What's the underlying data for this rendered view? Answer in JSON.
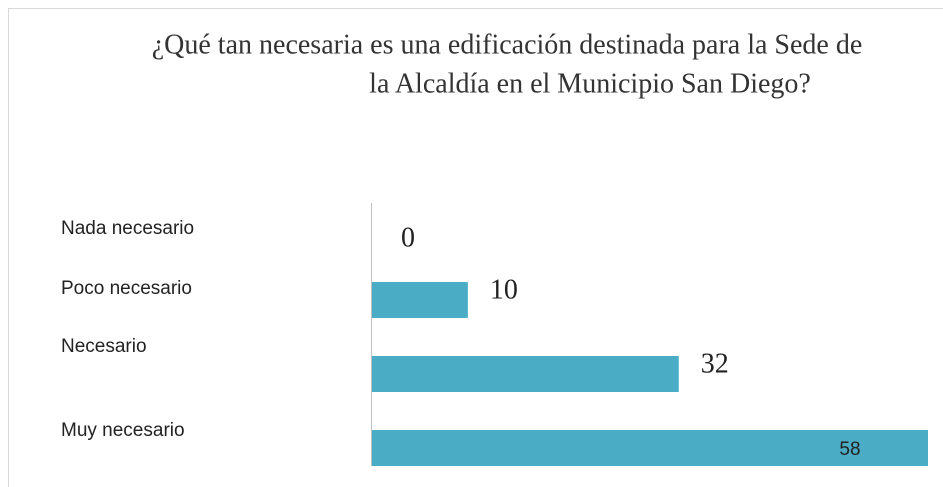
{
  "chart_data": {
    "type": "bar",
    "orientation": "horizontal",
    "title": [
      "¿Qué tan necesaria es una edificación destinada para la Sede de",
      "la Alcaldía en el Municipio San Diego?"
    ],
    "categories": [
      "Nada necesario",
      "Poco necesario",
      "Necesario",
      "Muy necesario"
    ],
    "values": [
      0,
      10,
      32,
      58
    ],
    "color": "#4bacc6"
  }
}
